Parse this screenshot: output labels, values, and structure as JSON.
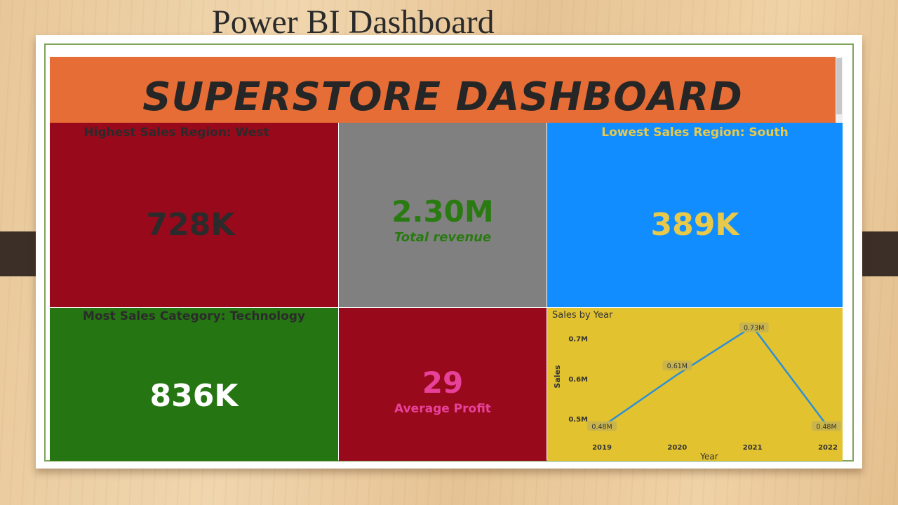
{
  "slide": {
    "title": "Power BI Dashboard"
  },
  "dashboard": {
    "banner_title": "SUPERSTORE DASHBOARD",
    "highest_region": {
      "label": "Highest Sales Region: West",
      "value": "728K"
    },
    "total_revenue": {
      "value": "2.30M",
      "label": "Total revenue"
    },
    "lowest_region": {
      "label": "Lowest Sales Region: South",
      "value": "389K"
    },
    "top_category": {
      "label": "Most Sales Category: Technology",
      "value": "836K"
    },
    "average_profit": {
      "value": "29",
      "label": "Average Profit"
    }
  },
  "colors": {
    "banner": "#e66d36",
    "west_tile": "#98091b",
    "revenue_tile": "#808080",
    "south_tile": "#118dff",
    "tech_tile": "#257612",
    "profit_tile": "#98091b",
    "chart_tile": "#e2c22f",
    "line": "#2d8fd8",
    "pink_text": "#e8419a",
    "gold_text": "#e8c94a"
  },
  "chart_data": {
    "type": "line",
    "title": "Sales by Year",
    "xlabel": "Year",
    "ylabel": "Sales",
    "x": [
      "2019",
      "2020",
      "2021",
      "2022"
    ],
    "series": [
      {
        "values": [
          0.48,
          0.61,
          0.73,
          0.48
        ],
        "data_labels": [
          "0.48M",
          "0.61M",
          "0.73M",
          "0.48M"
        ]
      }
    ],
    "y_ticks": [
      0.5,
      0.6,
      0.7
    ],
    "y_tick_labels": [
      "0.5M",
      "0.6M",
      "0.7M"
    ],
    "ylim": [
      0.465,
      0.745
    ],
    "grid": false,
    "legend": "none"
  }
}
